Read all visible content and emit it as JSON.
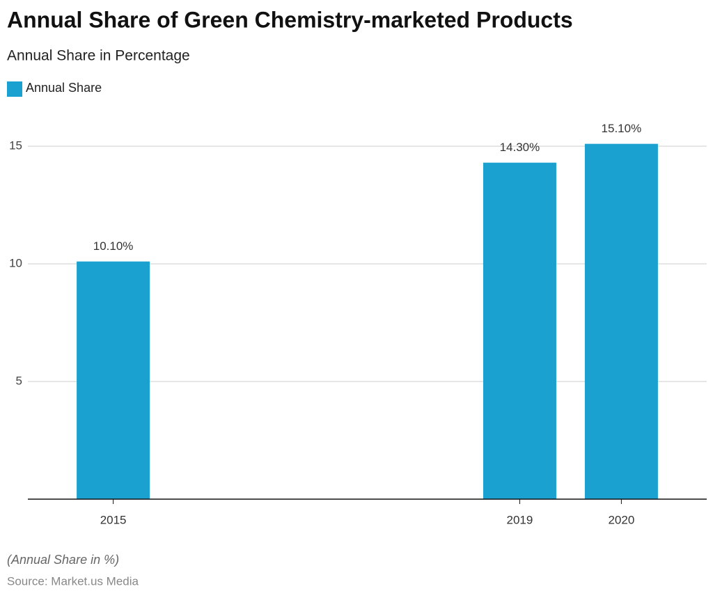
{
  "chart_data": {
    "type": "bar",
    "title": "Annual Share of Green Chemistry-marketed Products",
    "subtitle": "Annual Share in Percentage",
    "x": [
      2015,
      2019,
      2020
    ],
    "xlim": [
      2014.16,
      2020.84
    ],
    "series": [
      {
        "name": "Annual Share",
        "color": "#1aa1cf",
        "values": [
          10.1,
          14.3,
          15.1
        ],
        "value_labels": [
          "10.10%",
          "14.30%",
          "15.10%"
        ]
      }
    ],
    "ylim": [
      0,
      15
    ],
    "yticks": [
      5,
      10,
      15
    ],
    "grid": true,
    "legend": "top-left",
    "note": "(Annual Share in %)",
    "source": "Source: Market.us Media"
  }
}
